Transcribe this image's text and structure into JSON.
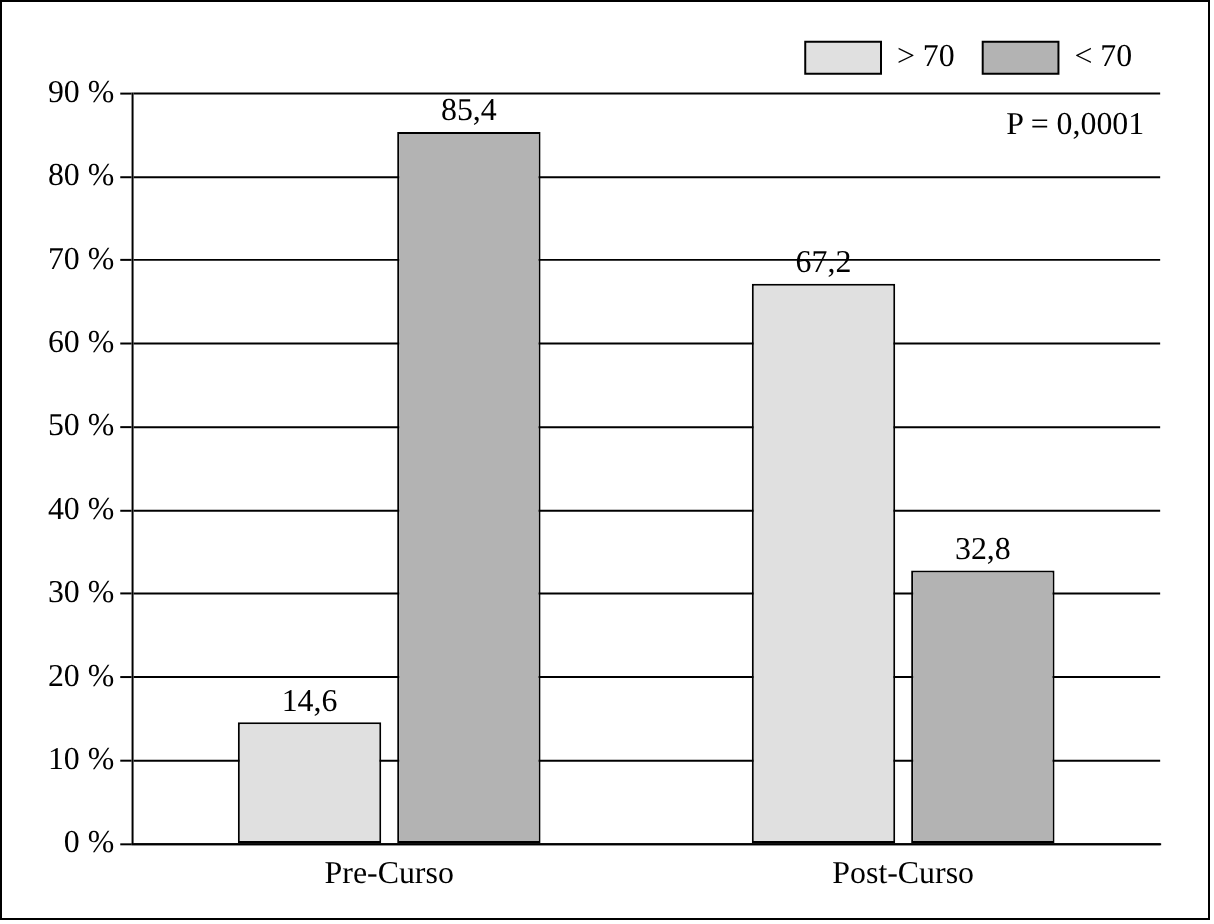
{
  "chart_data": {
    "type": "bar",
    "categories": [
      "Pre-Curso",
      "Post-Curso"
    ],
    "series": [
      {
        "name": "> 70",
        "color": "#e0e0e0",
        "values": [
          14.6,
          67.2
        ],
        "value_labels": [
          "14,6",
          "67,2"
        ]
      },
      {
        "name": "< 70",
        "color": "#b3b3b3",
        "values": [
          85.4,
          32.8
        ],
        "value_labels": [
          "85,4",
          "32,8"
        ]
      }
    ],
    "ylim": [
      0,
      90
    ],
    "yticks": [
      {
        "value": 0,
        "label": "0 %"
      },
      {
        "value": 10,
        "label": "10 %"
      },
      {
        "value": 20,
        "label": "20 %"
      },
      {
        "value": 30,
        "label": "30 %"
      },
      {
        "value": 40,
        "label": "40 %"
      },
      {
        "value": 50,
        "label": "50 %"
      },
      {
        "value": 60,
        "label": "60 %"
      },
      {
        "value": 70,
        "label": "70 %"
      },
      {
        "value": 80,
        "label": "80 %"
      },
      {
        "value": 90,
        "label": "90 %"
      }
    ],
    "grid": "y",
    "legend": "top right",
    "annotations": [
      "P = 0,0001"
    ]
  }
}
